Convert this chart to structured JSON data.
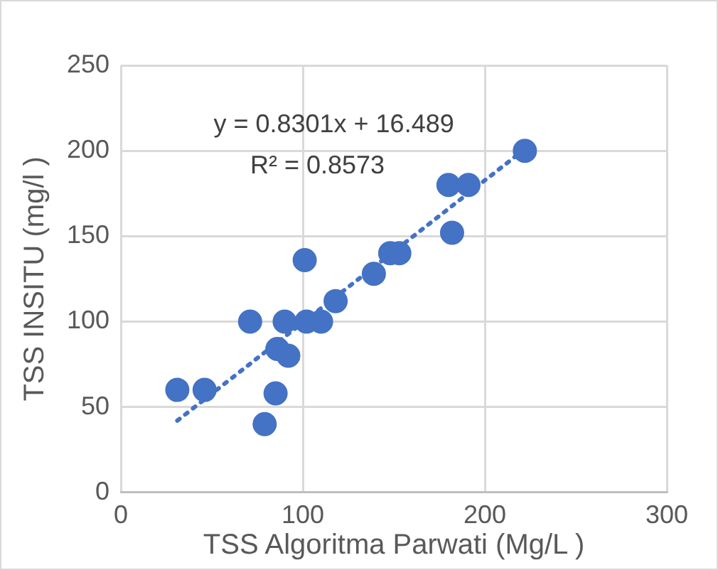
{
  "chart_data": {
    "type": "scatter",
    "xlabel": "TSS Algoritma Parwati (Mg/L )",
    "ylabel": "TSS INSITU (mg/l )",
    "xlim": [
      0,
      300
    ],
    "xticks": [
      0,
      100,
      200,
      300
    ],
    "ylim": [
      0,
      250
    ],
    "yticks": [
      0,
      50,
      100,
      150,
      200,
      250
    ],
    "grid": true,
    "legend": false,
    "marker": "circle",
    "annotations": [
      "y = 0.8301x + 16.489",
      "R² = 0.8573"
    ],
    "series": [
      {
        "type": "scatter",
        "color": "#4472c4",
        "x": [
          31,
          46,
          79,
          85,
          86,
          92,
          71,
          90,
          102,
          110,
          101,
          118,
          139,
          148,
          153,
          182,
          180,
          191,
          222
        ],
        "values": [
          60,
          60,
          40,
          58,
          84,
          80,
          100,
          100,
          100,
          100,
          136,
          112,
          128,
          140,
          140,
          152,
          180,
          180,
          200
        ]
      },
      {
        "type": "line",
        "color": "#4472c4",
        "line_style": "dotted",
        "marker": "none",
        "x": [
          31,
          222
        ],
        "values": [
          42,
          201
        ]
      }
    ]
  }
}
